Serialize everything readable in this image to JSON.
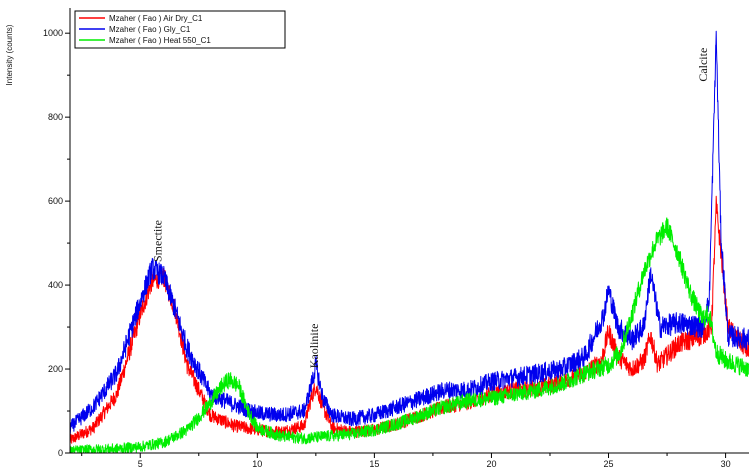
{
  "chart_data": {
    "type": "line",
    "title": "",
    "xlabel": "",
    "ylabel": "Intensity (counts)",
    "xlim": [
      2,
      31
    ],
    "ylim": [
      0,
      1060
    ],
    "x_ticks": [
      5,
      10,
      15,
      20,
      25,
      30
    ],
    "y_ticks": [
      0,
      200,
      400,
      600,
      800,
      1000
    ],
    "legend": {
      "position": "top-left"
    },
    "series": [
      {
        "name": "Mzaher ( Fao ) Air Dry_C1",
        "color": "#ff0000",
        "noise": 20,
        "x": [
          2,
          3,
          4,
          5,
          5.5,
          6,
          6.5,
          7,
          8,
          9,
          10,
          11,
          12,
          12.3,
          12.5,
          12.8,
          13.2,
          14,
          15,
          16,
          17,
          18,
          19,
          20,
          21,
          22,
          23,
          24,
          24.7,
          25,
          25.4,
          26,
          26.5,
          26.8,
          27.1,
          28,
          29,
          29.4,
          29.6,
          29.8,
          30.1,
          31
        ],
        "y": [
          30,
          60,
          140,
          330,
          410,
          420,
          340,
          210,
          90,
          65,
          55,
          50,
          65,
          130,
          160,
          110,
          60,
          50,
          55,
          70,
          90,
          110,
          120,
          140,
          150,
          155,
          170,
          190,
          220,
          290,
          230,
          200,
          220,
          280,
          210,
          260,
          280,
          300,
          590,
          480,
          300,
          240
        ]
      },
      {
        "name": "Mzaher ( Fao ) Gly_C1",
        "color": "#0000ee",
        "noise": 22,
        "x": [
          2,
          3,
          4,
          5,
          5.5,
          6,
          6.5,
          7,
          8,
          9,
          10,
          11,
          12,
          12.3,
          12.5,
          12.8,
          13.2,
          14,
          15,
          16,
          17,
          18,
          19,
          20,
          21,
          22,
          23,
          24,
          24.8,
          25,
          25.4,
          26,
          26.5,
          26.8,
          27.2,
          28,
          29,
          29.3,
          29.6,
          29.8,
          30.1,
          31
        ],
        "y": [
          60,
          110,
          190,
          360,
          440,
          420,
          340,
          250,
          140,
          115,
          95,
          90,
          100,
          160,
          210,
          130,
          90,
          80,
          90,
          110,
          130,
          150,
          150,
          170,
          180,
          190,
          200,
          230,
          330,
          390,
          300,
          270,
          300,
          430,
          300,
          310,
          300,
          360,
          1000,
          520,
          280,
          270
        ]
      },
      {
        "name": "Mzaher ( Fao ) Heat 550_C1",
        "color": "#00ee00",
        "noise": 20,
        "x": [
          2,
          3,
          4,
          5,
          6,
          7,
          7.5,
          8,
          8.5,
          8.8,
          9.2,
          9.6,
          10,
          11,
          12,
          13,
          14,
          15,
          16,
          17,
          18,
          19,
          20,
          21,
          22,
          23,
          24,
          25,
          25.5,
          26,
          26.5,
          27,
          27.5,
          28,
          28.5,
          29,
          29.3,
          29.6,
          30,
          31
        ],
        "y": [
          5,
          8,
          10,
          15,
          25,
          55,
          85,
          120,
          160,
          175,
          160,
          100,
          60,
          40,
          35,
          40,
          45,
          55,
          70,
          90,
          110,
          125,
          130,
          140,
          150,
          165,
          190,
          210,
          240,
          330,
          430,
          500,
          540,
          470,
          380,
          320,
          330,
          240,
          220,
          200
        ]
      }
    ],
    "annotations": [
      {
        "text": "Smectite",
        "x": 5.9,
        "y": 505
      },
      {
        "text": "Kaolinite",
        "x": 12.6,
        "y": 255
      },
      {
        "text": "Calcite",
        "x": 29.2,
        "y": 925
      }
    ]
  }
}
